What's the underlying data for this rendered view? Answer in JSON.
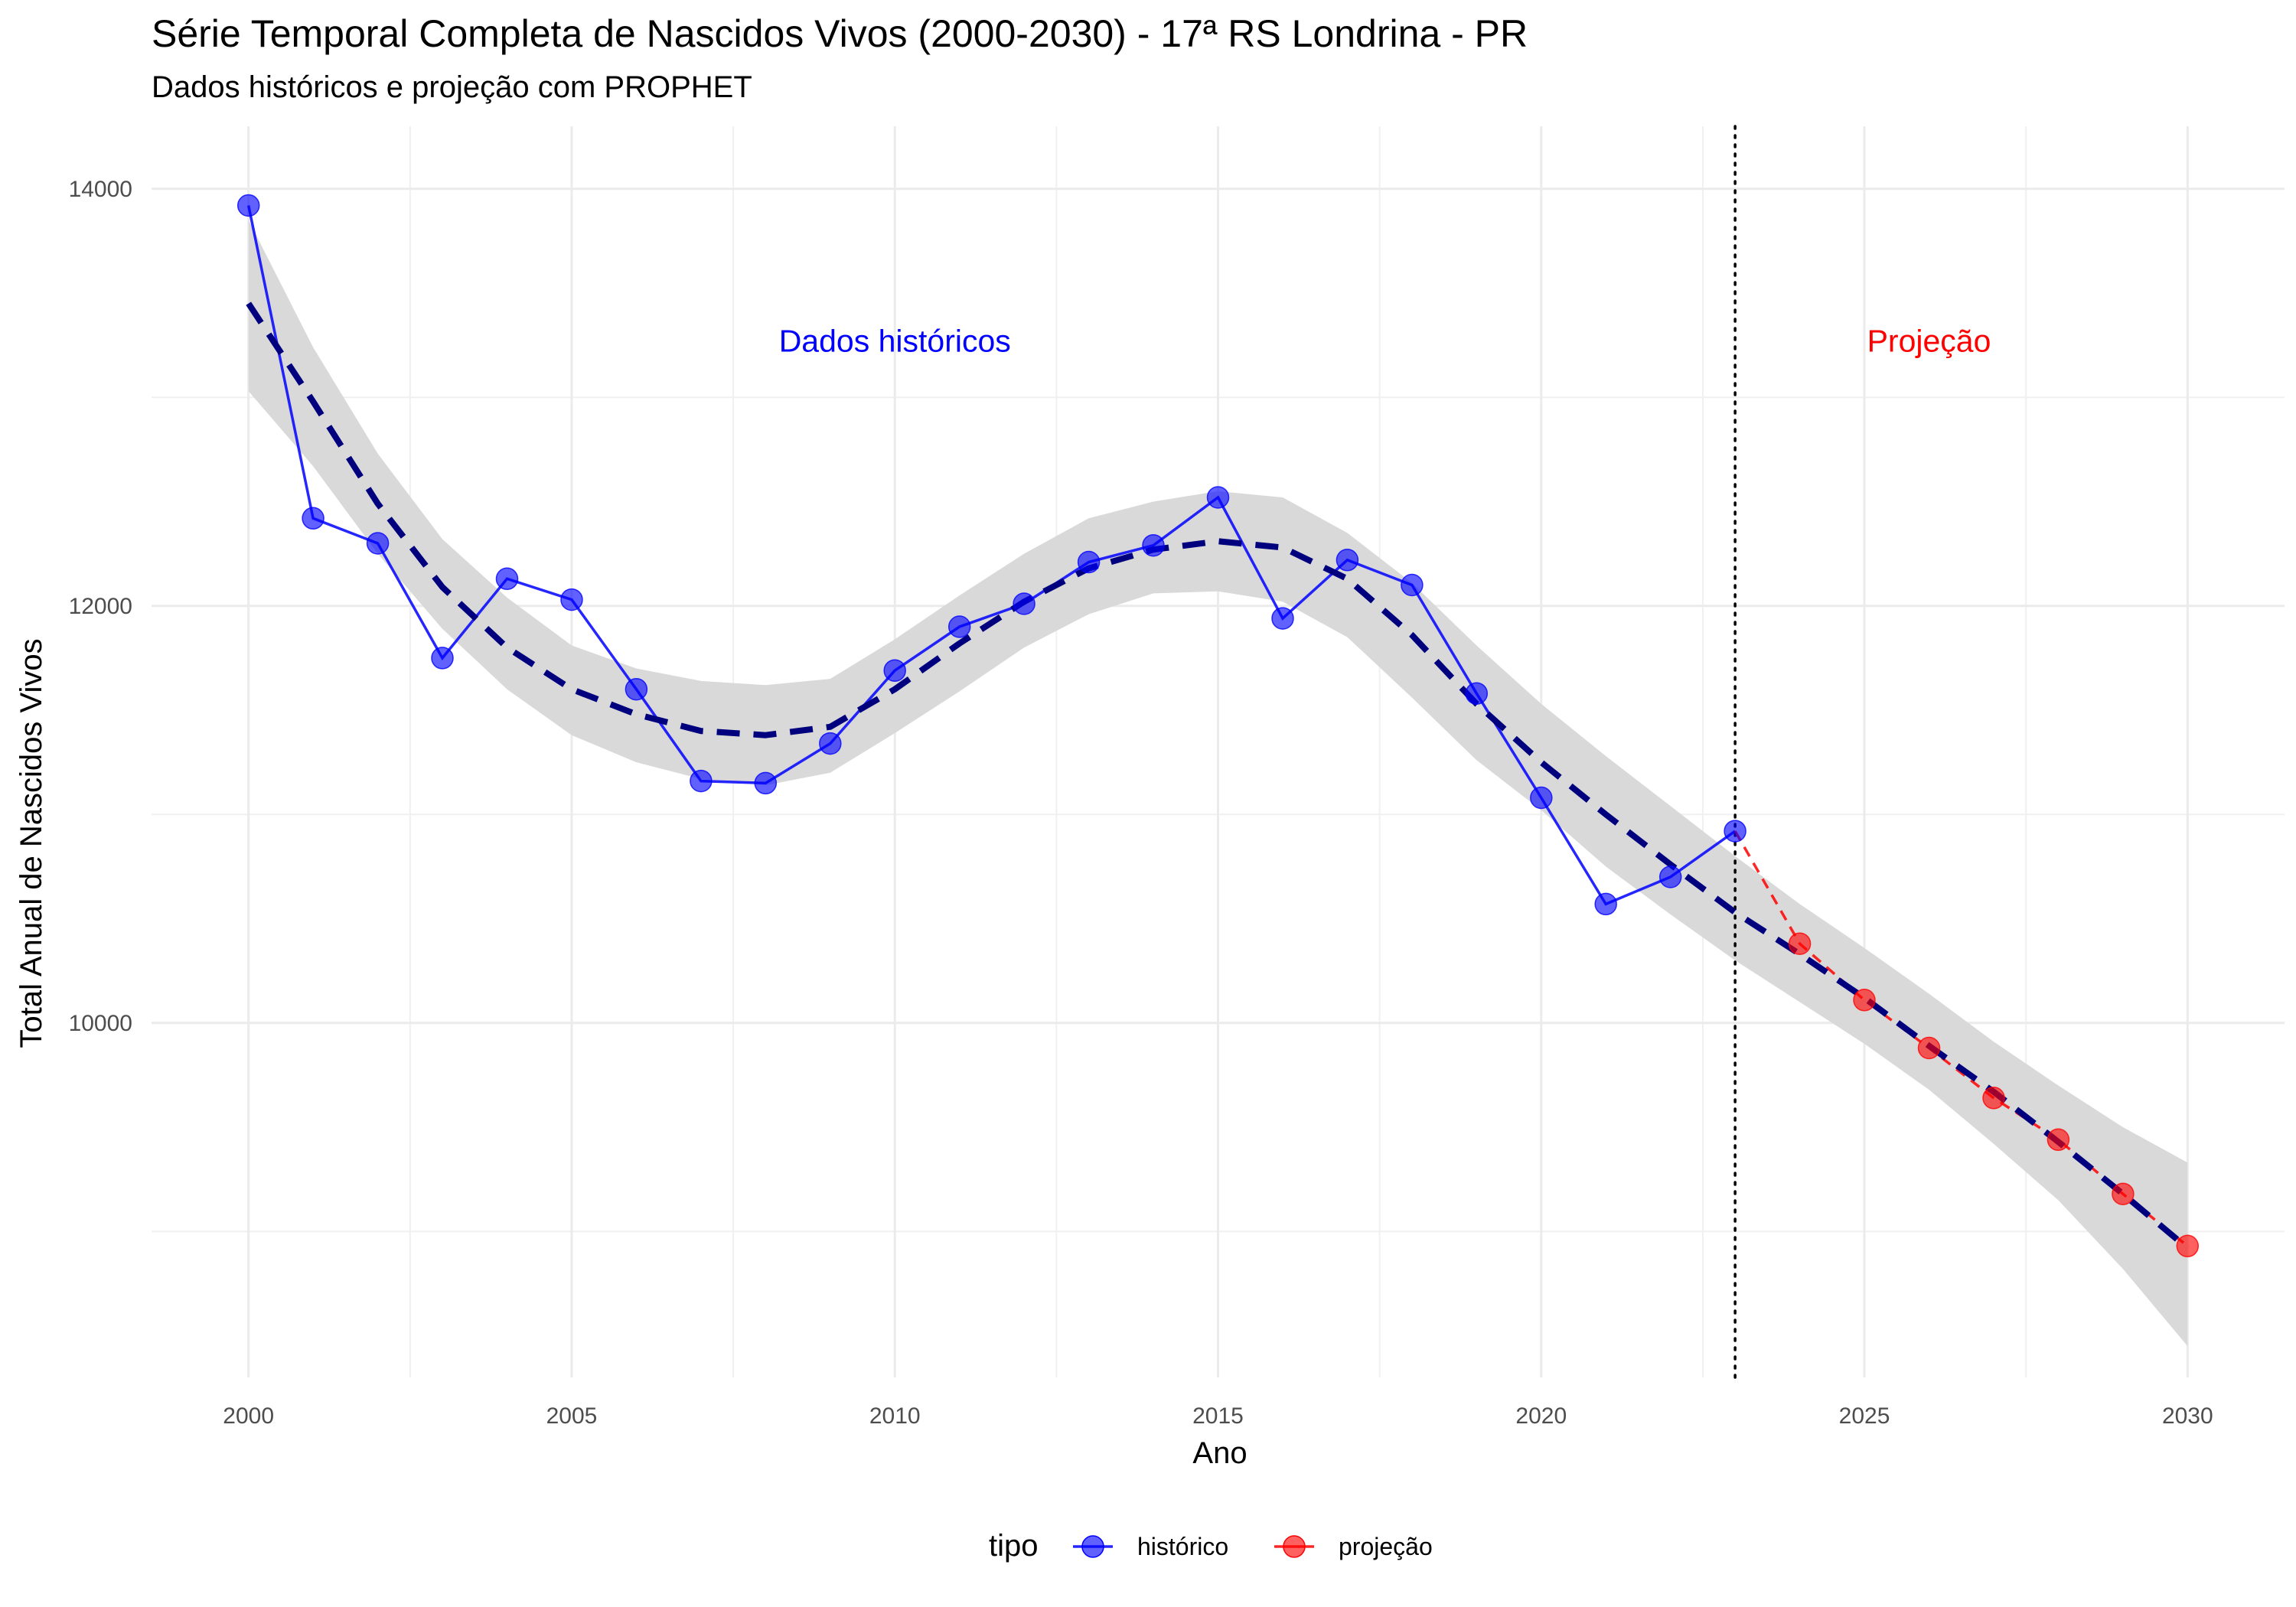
{
  "chart_data": {
    "type": "line",
    "title": "Série Temporal Completa de Nascidos Vivos (2000-2030) -  17ª RS Londrina - PR",
    "subtitle": "Dados históricos e projeção com PROPHET",
    "xlabel": "Ano",
    "ylabel": "Total Anual de Nascidos Vivos",
    "xlim": [
      1998.5,
      2031.5
    ],
    "ylim": [
      8300,
      14300
    ],
    "x_ticks": [
      2000,
      2005,
      2010,
      2015,
      2020,
      2025,
      2030
    ],
    "x_tick_labels": [
      "2000",
      "2005",
      "2010",
      "2015",
      "2020",
      "2025",
      "2030"
    ],
    "y_ticks": [
      10000,
      12000,
      14000
    ],
    "y_tick_labels": [
      "10000",
      "12000",
      "14000"
    ],
    "y_minor_gridlines": [
      9000,
      11000,
      13000
    ],
    "grid": true,
    "vline": {
      "x": 2023,
      "style": "dotted",
      "color": "#000000"
    },
    "annotations": [
      {
        "text": "Dados históricos",
        "x": 2010,
        "y": 13220,
        "color": "#0000ff"
      },
      {
        "text": "Projeção",
        "x": 2026,
        "y": 13220,
        "color": "#ff0000"
      }
    ],
    "legend": {
      "title": "tipo",
      "position": "bottom",
      "items": [
        {
          "label": "histórico",
          "color": "#0000ff"
        },
        {
          "label": "projeção",
          "color": "#ff0000"
        }
      ]
    },
    "series": [
      {
        "name": "histórico",
        "color": "#0000ff",
        "line_style": "solid",
        "x": [
          2000,
          2001,
          2002,
          2003,
          2004,
          2005,
          2006,
          2007,
          2008,
          2009,
          2010,
          2011,
          2012,
          2013,
          2014,
          2015,
          2016,
          2017,
          2018,
          2019,
          2020,
          2021,
          2022,
          2023
        ],
        "values": [
          13920,
          12420,
          12300,
          11750,
          12130,
          12030,
          11600,
          11160,
          11150,
          11340,
          11690,
          11900,
          12010,
          12210,
          12290,
          12520,
          11940,
          12220,
          12100,
          11580,
          11080,
          10570,
          10700,
          10920
        ]
      },
      {
        "name": "projeção",
        "color": "#ff0000",
        "line_style": "dashed",
        "x": [
          2023,
          2024,
          2025,
          2026,
          2027,
          2028,
          2029,
          2030
        ],
        "values": [
          10920,
          10380,
          10110,
          9880,
          9640,
          9440,
          9180,
          8930
        ]
      }
    ],
    "trend": {
      "color": "#00007f",
      "line_style": "dashed",
      "ribbon_color": "#d9d9d9",
      "x": [
        2000,
        2001,
        2002,
        2003,
        2004,
        2005,
        2006,
        2007,
        2008,
        2009,
        2010,
        2011,
        2012,
        2013,
        2014,
        2015,
        2016,
        2017,
        2018,
        2019,
        2020,
        2021,
        2022,
        2023,
        2024,
        2025,
        2026,
        2027,
        2028,
        2029,
        2030
      ],
      "values": [
        13450,
        12980,
        12490,
        12090,
        11800,
        11600,
        11480,
        11400,
        11380,
        11420,
        11600,
        11820,
        12020,
        12180,
        12270,
        12310,
        12280,
        12130,
        11860,
        11530,
        11250,
        11000,
        10760,
        10530,
        10330,
        10120,
        9890,
        9670,
        9430,
        9180,
        8920
      ],
      "lower": [
        13030,
        12670,
        12250,
        11890,
        11600,
        11380,
        11250,
        11170,
        11140,
        11200,
        11390,
        11590,
        11800,
        11960,
        12060,
        12070,
        12020,
        11850,
        11560,
        11260,
        11020,
        10750,
        10520,
        10300,
        10100,
        9900,
        9680,
        9420,
        9150,
        8820,
        8450
      ],
      "upper": [
        13850,
        13240,
        12730,
        12320,
        12040,
        11810,
        11700,
        11640,
        11620,
        11650,
        11840,
        12050,
        12250,
        12420,
        12500,
        12550,
        12520,
        12350,
        12110,
        11810,
        11530,
        11280,
        11040,
        10800,
        10570,
        10360,
        10140,
        9910,
        9700,
        9500,
        9330
      ]
    }
  }
}
